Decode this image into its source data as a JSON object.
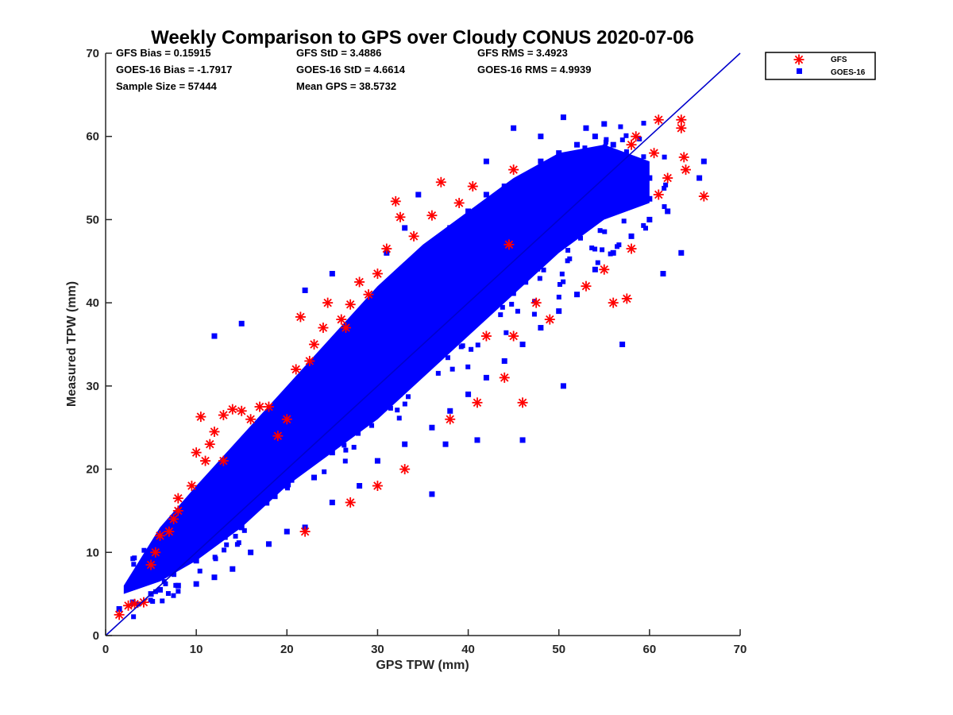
{
  "chart_data": {
    "type": "scatter",
    "title": "Weekly Comparison to GPS over Cloudy CONUS 2020-07-06",
    "xlabel": "GPS TPW (mm)",
    "ylabel": "Measured TPW (mm)",
    "xlim": [
      0,
      70
    ],
    "ylim": [
      0,
      70
    ],
    "xticks": [
      "0",
      "10",
      "20",
      "30",
      "40",
      "50",
      "60",
      "70"
    ],
    "yticks": [
      "0",
      "10",
      "20",
      "30",
      "40",
      "50",
      "60",
      "70"
    ],
    "grid": false,
    "legend_position": "outside-top-right",
    "stats": [
      {
        "label": "GFS Bias = 0.15915"
      },
      {
        "label": "GFS StD = 3.4886"
      },
      {
        "label": "GFS RMS = 3.4923"
      },
      {
        "label": "GOES-16 Bias = -1.7917"
      },
      {
        "label": "GOES-16 StD = 4.6614"
      },
      {
        "label": "GOES-16 RMS = 4.9939"
      },
      {
        "label": "Sample Size = 57444"
      },
      {
        "label": "Mean GPS = 38.5732"
      }
    ],
    "reference_line": {
      "name": "1:1",
      "x": [
        0,
        70
      ],
      "y": [
        0,
        70
      ],
      "color": "#0000cc"
    },
    "series": [
      {
        "name": "GOES-16",
        "marker": "square",
        "color": "#0000ff",
        "points": [
          [
            1.5,
            3.2
          ],
          [
            3,
            4
          ],
          [
            5,
            5
          ],
          [
            6,
            5.5
          ],
          [
            8,
            6
          ],
          [
            10,
            6.2
          ],
          [
            12,
            7
          ],
          [
            14,
            8
          ],
          [
            16,
            10
          ],
          [
            18,
            11
          ],
          [
            20,
            12.5
          ],
          [
            22,
            13
          ],
          [
            25,
            16
          ],
          [
            28,
            18
          ],
          [
            30,
            21
          ],
          [
            33,
            23
          ],
          [
            36,
            25
          ],
          [
            38,
            27
          ],
          [
            40,
            29
          ],
          [
            42,
            31
          ],
          [
            44,
            33
          ],
          [
            46,
            35
          ],
          [
            48,
            37
          ],
          [
            50,
            39
          ],
          [
            52,
            41
          ],
          [
            54,
            44
          ],
          [
            56,
            46
          ],
          [
            58,
            48
          ],
          [
            60,
            50
          ],
          [
            6,
            10
          ],
          [
            8,
            13
          ],
          [
            10,
            16
          ],
          [
            12,
            19
          ],
          [
            14,
            21
          ],
          [
            16,
            24
          ],
          [
            18,
            26
          ],
          [
            20,
            28
          ],
          [
            22,
            31
          ],
          [
            24,
            33
          ],
          [
            26,
            36
          ],
          [
            28,
            38
          ],
          [
            30,
            40
          ],
          [
            32,
            43
          ],
          [
            34,
            45
          ],
          [
            36,
            47
          ],
          [
            38,
            49
          ],
          [
            40,
            51
          ],
          [
            42,
            53
          ],
          [
            44,
            54
          ],
          [
            46,
            55
          ],
          [
            48,
            57
          ],
          [
            50,
            58
          ],
          [
            52,
            59
          ],
          [
            54,
            60
          ],
          [
            56,
            59
          ],
          [
            58,
            57
          ],
          [
            60,
            55
          ],
          [
            34.5,
            53
          ],
          [
            45,
            61
          ],
          [
            50.5,
            62.3
          ],
          [
            55,
            61.5
          ],
          [
            63.5,
            46
          ],
          [
            61.5,
            43.5
          ],
          [
            66,
            57
          ],
          [
            65.5,
            55
          ],
          [
            36,
            17
          ],
          [
            37.5,
            23
          ],
          [
            41,
            23.5
          ],
          [
            46,
            23.5
          ],
          [
            50.5,
            30
          ],
          [
            57,
            35
          ],
          [
            23,
            19
          ],
          [
            22,
            41.5
          ],
          [
            31,
            46
          ],
          [
            33,
            49
          ],
          [
            12,
            36
          ],
          [
            15,
            37.5
          ],
          [
            25,
            43.5
          ],
          [
            42,
            57
          ],
          [
            48,
            60
          ],
          [
            53,
            61
          ],
          [
            10,
            9
          ],
          [
            15,
            13
          ],
          [
            20,
            18
          ],
          [
            25,
            22
          ],
          [
            30,
            27
          ],
          [
            35,
            32
          ],
          [
            40,
            37
          ],
          [
            45,
            42
          ],
          [
            50,
            47
          ],
          [
            55,
            52
          ],
          [
            60,
            52.5
          ],
          [
            62,
            51
          ],
          [
            44,
            47
          ],
          [
            38,
            42
          ]
        ]
      },
      {
        "name": "GFS",
        "marker": "asterisk",
        "color": "#ff0000",
        "points": [
          [
            1.5,
            2.5
          ],
          [
            2.5,
            3.6
          ],
          [
            3.2,
            3.8
          ],
          [
            4.2,
            4
          ],
          [
            5,
            8.5
          ],
          [
            5.5,
            10
          ],
          [
            6,
            12
          ],
          [
            7,
            12.5
          ],
          [
            7.5,
            14
          ],
          [
            8,
            15
          ],
          [
            9.5,
            18
          ],
          [
            10,
            22
          ],
          [
            10.5,
            26.3
          ],
          [
            11.5,
            23
          ],
          [
            12,
            24.5
          ],
          [
            13,
            26.5
          ],
          [
            14,
            27.2
          ],
          [
            15,
            27
          ],
          [
            16,
            26
          ],
          [
            17,
            27.5
          ],
          [
            18,
            27.5
          ],
          [
            21,
            32
          ],
          [
            21.5,
            38.3
          ],
          [
            22.5,
            33
          ],
          [
            23,
            35
          ],
          [
            24,
            37
          ],
          [
            24.5,
            40
          ],
          [
            26,
            38
          ],
          [
            27,
            39.8
          ],
          [
            29,
            41
          ],
          [
            30,
            43.5
          ],
          [
            31,
            46.5
          ],
          [
            32,
            52.2
          ],
          [
            32.5,
            50.3
          ],
          [
            34,
            48
          ],
          [
            36,
            50.5
          ],
          [
            37,
            54.5
          ],
          [
            39,
            52
          ],
          [
            40.5,
            54
          ],
          [
            45,
            56
          ],
          [
            58,
            59
          ],
          [
            58.5,
            60
          ],
          [
            61,
            62
          ],
          [
            63.5,
            62
          ],
          [
            63.5,
            61
          ],
          [
            63.8,
            57.5
          ],
          [
            64,
            56
          ],
          [
            66,
            52.8
          ],
          [
            62,
            55
          ],
          [
            60.5,
            58
          ],
          [
            22,
            12.5
          ],
          [
            27,
            16
          ],
          [
            30,
            18
          ],
          [
            33,
            20
          ],
          [
            38,
            26
          ],
          [
            41,
            28
          ],
          [
            44,
            31
          ],
          [
            46,
            28
          ],
          [
            42,
            36
          ],
          [
            45,
            36
          ],
          [
            56,
            40
          ],
          [
            53,
            42
          ],
          [
            49,
            38
          ],
          [
            47.5,
            40
          ],
          [
            57.5,
            40.5
          ],
          [
            55,
            44
          ],
          [
            44.5,
            47
          ],
          [
            58,
            46.5
          ],
          [
            61,
            53
          ],
          [
            26.5,
            37
          ],
          [
            28,
            42.5
          ],
          [
            19,
            24
          ],
          [
            20,
            26
          ],
          [
            13,
            21
          ],
          [
            11,
            21
          ],
          [
            8,
            16.5
          ]
        ]
      }
    ],
    "dense_regions_note": ""
  }
}
